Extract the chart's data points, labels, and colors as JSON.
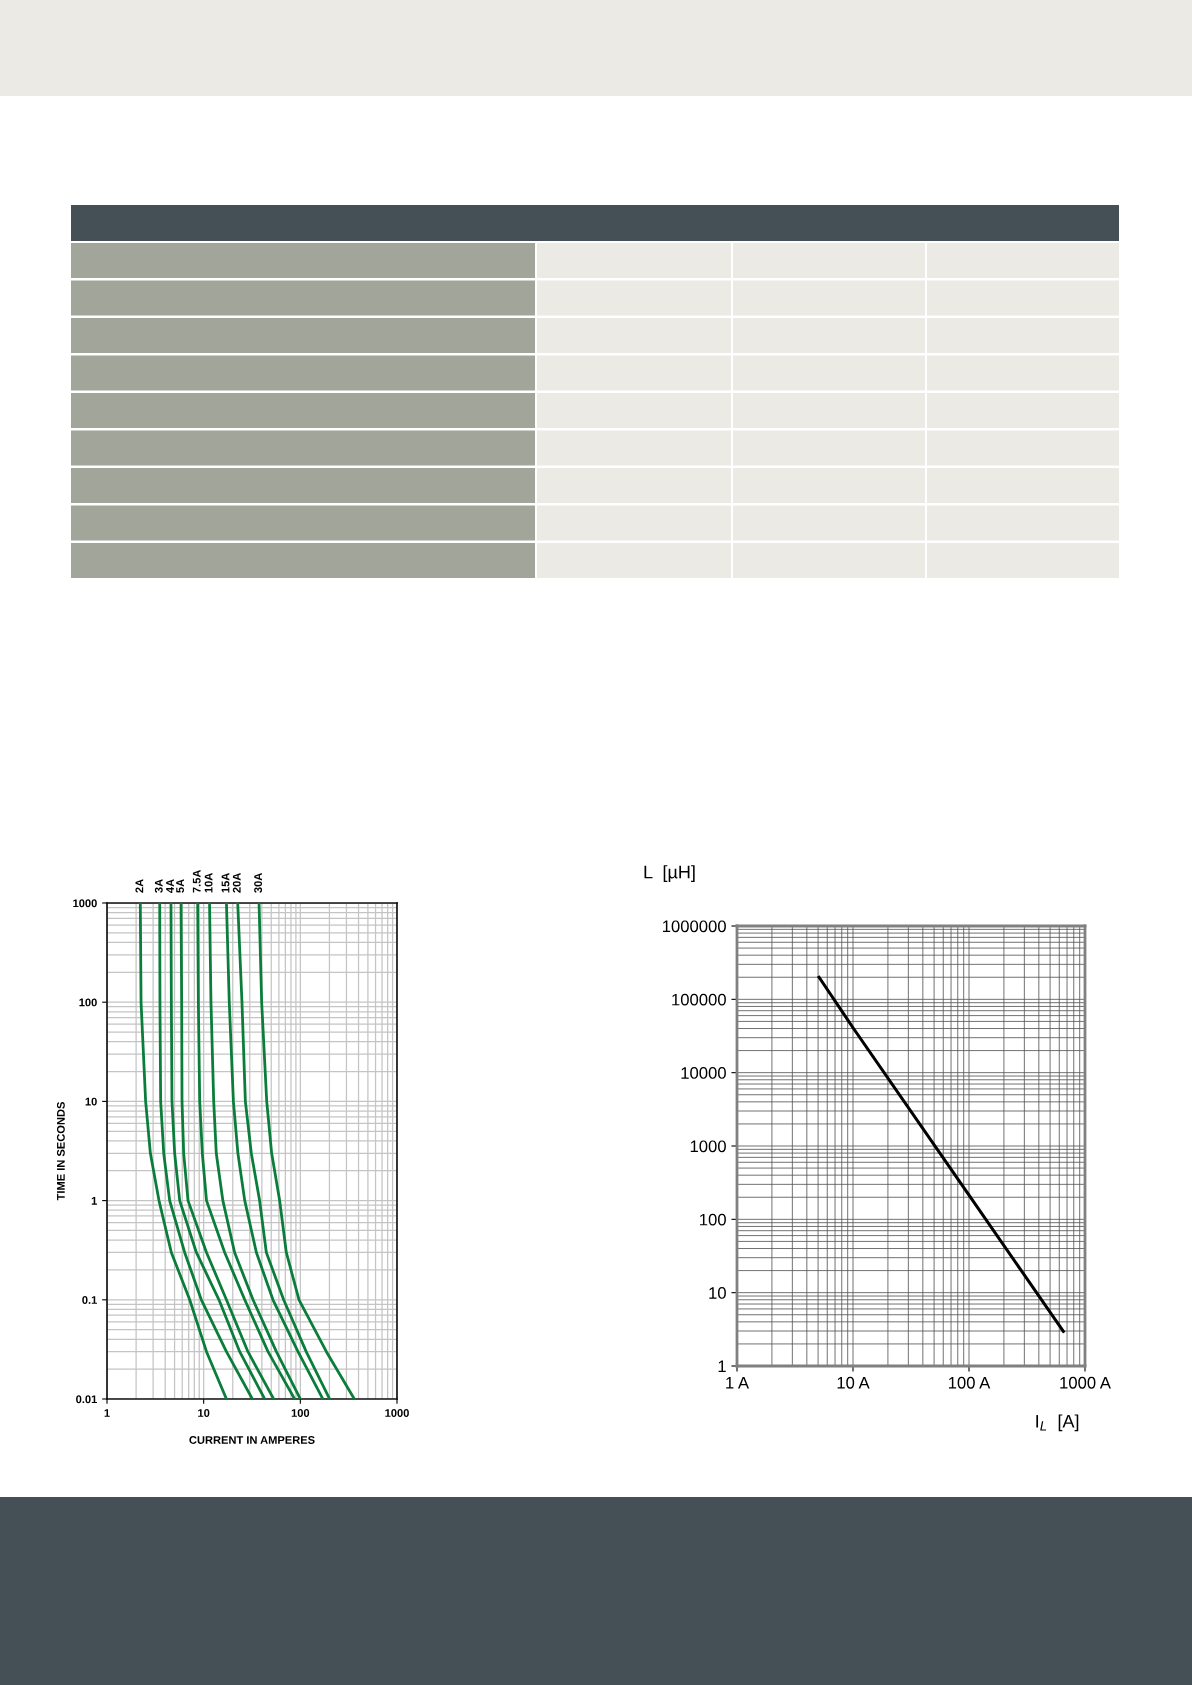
{
  "chart_data": [
    {
      "type": "line",
      "xlabel": "CURRENT IN AMPERES",
      "ylabel": "TIME IN SECONDS",
      "log": "xy",
      "grid": true,
      "legend": false,
      "marker": "none",
      "line_style": "solid",
      "xlim": [
        1,
        1000
      ],
      "xticks": [
        1,
        10,
        100,
        1000
      ],
      "ylim": [
        0.01,
        1000
      ],
      "yticks": [
        0.01,
        0.1,
        1,
        10,
        100,
        1000
      ],
      "series": [
        {
          "name": "2A",
          "color": "#0a7d3a",
          "x": [
            2.21,
            2.25,
            2.51,
            2.81,
            3.45,
            4.63,
            7.17,
            10.7,
            17.2
          ],
          "values": [
            1000,
            100,
            10,
            3,
            1,
            0.3,
            0.1,
            0.03,
            0.01
          ]
        },
        {
          "name": "3A",
          "color": "#0a7d3a",
          "x": [
            3.51,
            3.53,
            3.59,
            3.86,
            4.45,
            6.36,
            9.46,
            17.2,
            31.9
          ],
          "values": [
            1000,
            100,
            10,
            3,
            1,
            0.3,
            0.1,
            0.03,
            0.01
          ]
        },
        {
          "name": "4A",
          "color": "#0a7d3a",
          "x": [
            4.59,
            4.63,
            4.7,
            5.01,
            5.65,
            8.4,
            14.4,
            23.6,
            42.8
          ],
          "values": [
            1000,
            100,
            10,
            3,
            1,
            0.3,
            0.1,
            0.03,
            0.01
          ]
        },
        {
          "name": "5A",
          "color": "#0a7d3a",
          "x": [
            5.83,
            5.92,
            5.97,
            6.21,
            6.89,
            10.7,
            17.2,
            28.7,
            53.0
          ],
          "values": [
            1000,
            100,
            10,
            3,
            1,
            0.3,
            0.1,
            0.03,
            0.01
          ]
        },
        {
          "name": "7.5A",
          "color": "#0a7d3a",
          "x": [
            8.67,
            8.81,
            9.1,
            9.68,
            10.7,
            16.5,
            26.6,
            46.3,
            87.3
          ],
          "values": [
            1000,
            100,
            10,
            3,
            1,
            0.3,
            0.1,
            0.03,
            0.01
          ]
        },
        {
          "name": "10A",
          "color": "#0a7d3a",
          "x": [
            11.5,
            11.9,
            12.7,
            13.5,
            15.8,
            20.9,
            32.4,
            56.5,
            100
          ],
          "values": [
            1000,
            100,
            10,
            3,
            1,
            0.3,
            0.1,
            0.03,
            0.01
          ]
        },
        {
          "name": "15A",
          "color": "#0a7d3a",
          "x": [
            17.2,
            18.4,
            20.3,
            22.6,
            26.6,
            35.1,
            52.1,
            94.6,
            171
          ],
          "values": [
            1000,
            100,
            10,
            3,
            1,
            0.3,
            0.1,
            0.03,
            0.01
          ]
        },
        {
          "name": "20A",
          "color": "#0a7d3a",
          "x": [
            22.5,
            24.9,
            27.0,
            31.1,
            37.9,
            44.5,
            67.2,
            115,
            201
          ],
          "values": [
            1000,
            100,
            10,
            3,
            1,
            0.3,
            0.1,
            0.03,
            0.01
          ]
        },
        {
          "name": "30A",
          "color": "#0a7d3a",
          "x": [
            37.4,
            39.8,
            44.9,
            50.5,
            61.1,
            71.6,
            96.9,
            186,
            362
          ],
          "values": [
            1000,
            100,
            10,
            3,
            1,
            0.3,
            0.1,
            0.03,
            0.01
          ]
        }
      ]
    },
    {
      "type": "line",
      "xlabel": "I$_{L}$  [A]",
      "ylabel": "L  [µH]",
      "log": "xy",
      "grid": true,
      "legend": false,
      "marker": "none",
      "line_style": "solid",
      "xlim": [
        1,
        1000
      ],
      "xticks": [
        {
          "value": 1,
          "label": "1 A"
        },
        {
          "value": 10,
          "label": "10 A"
        },
        {
          "value": 100,
          "label": "100 A"
        },
        {
          "value": 1000,
          "label": "1000 A"
        }
      ],
      "ylim": [
        1,
        1000000
      ],
      "yticks": [
        1,
        10,
        100,
        1000,
        10000,
        100000,
        1000000
      ],
      "series": [
        {
          "color": "#000000",
          "x": [
            5.1,
            10,
            100,
            651
          ],
          "values": [
            200000,
            41000,
            214,
            2.97
          ]
        }
      ]
    }
  ]
}
